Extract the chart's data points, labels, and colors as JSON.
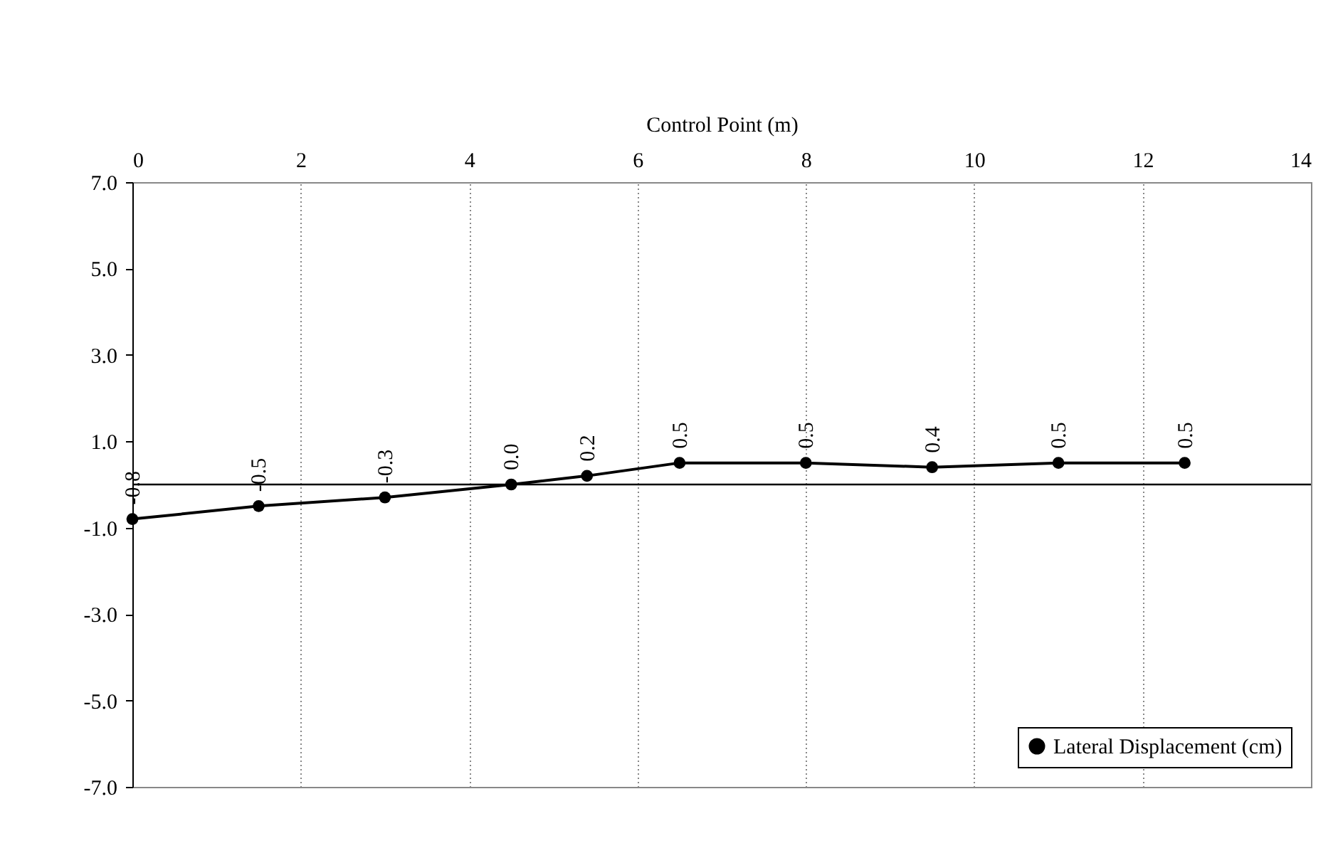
{
  "chart_data": {
    "type": "line",
    "xlabel": "Control Point (m)",
    "x": [
      0,
      1.5,
      3,
      4.5,
      5.4,
      6.5,
      8,
      9.5,
      11,
      12.5
    ],
    "series": [
      {
        "name": "Lateral Displacement (cm)",
        "color": "#000000",
        "values": [
          -0.8,
          -0.5,
          -0.3,
          0.0,
          0.2,
          0.5,
          0.5,
          0.4,
          0.5,
          0.5
        ],
        "value_labels": [
          "-0.8",
          "-0.5",
          "-0.3",
          "0.0",
          "0.2",
          "0.5",
          "0.5",
          "0.4",
          "0.5",
          "0.5"
        ]
      }
    ],
    "xlim": [
      0,
      14
    ],
    "xticks": [
      0,
      2,
      4,
      6,
      8,
      10,
      12,
      14
    ],
    "ylim": [
      -7,
      7
    ],
    "yticks": [
      {
        "value": 7,
        "label": "7.0"
      },
      {
        "value": 5,
        "label": "5.0"
      },
      {
        "value": 3,
        "label": "3.0"
      },
      {
        "value": 1,
        "label": "1.0"
      },
      {
        "value": -1,
        "label": "-1.0"
      },
      {
        "value": -3,
        "label": "-3.0"
      },
      {
        "value": -5,
        "label": "-5.0"
      },
      {
        "value": -7,
        "label": "-7.0"
      }
    ],
    "ref_lines": [
      {
        "axis": "y",
        "value": 0,
        "color": "#000000"
      }
    ],
    "grid": "x",
    "legend": "bottom right",
    "marker": "circle",
    "line_style": "solid"
  }
}
